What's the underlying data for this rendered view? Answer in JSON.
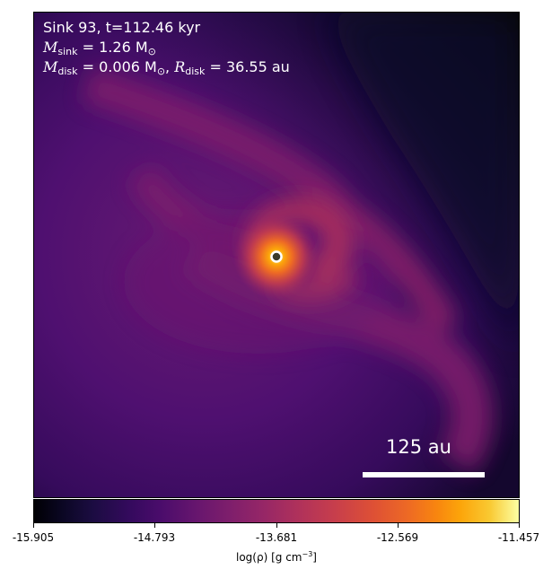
{
  "header": {
    "sink_line": "Sink 93, t=112.46 kyr",
    "mass_symbol": "M",
    "mass_sub": "sink",
    "mass_value": "= 1.26 M",
    "mass_sun": "⊙",
    "disk_symbol": "M",
    "disk_sub": "disk",
    "disk_value": "= 0.006 M",
    "disk_sun": "⊙",
    "radius_sep": ", ",
    "radius_symbol": "R",
    "radius_sub": "disk",
    "radius_value": "= 36.55 au"
  },
  "scale_bar": {
    "label": "125 au"
  },
  "colorbar": {
    "colormap": "inferno",
    "ticks": [
      "-15.905",
      "-14.793",
      "-13.681",
      "-12.569",
      "-11.457"
    ],
    "label_prefix": "log(ρ) [g cm",
    "label_exp": "−3",
    "label_suffix": "]"
  },
  "colors": {
    "text_on_map": "#ffffff",
    "sink_marker_ring": "#ffffff",
    "sink_marker_fill": "#3a3a2a"
  }
}
